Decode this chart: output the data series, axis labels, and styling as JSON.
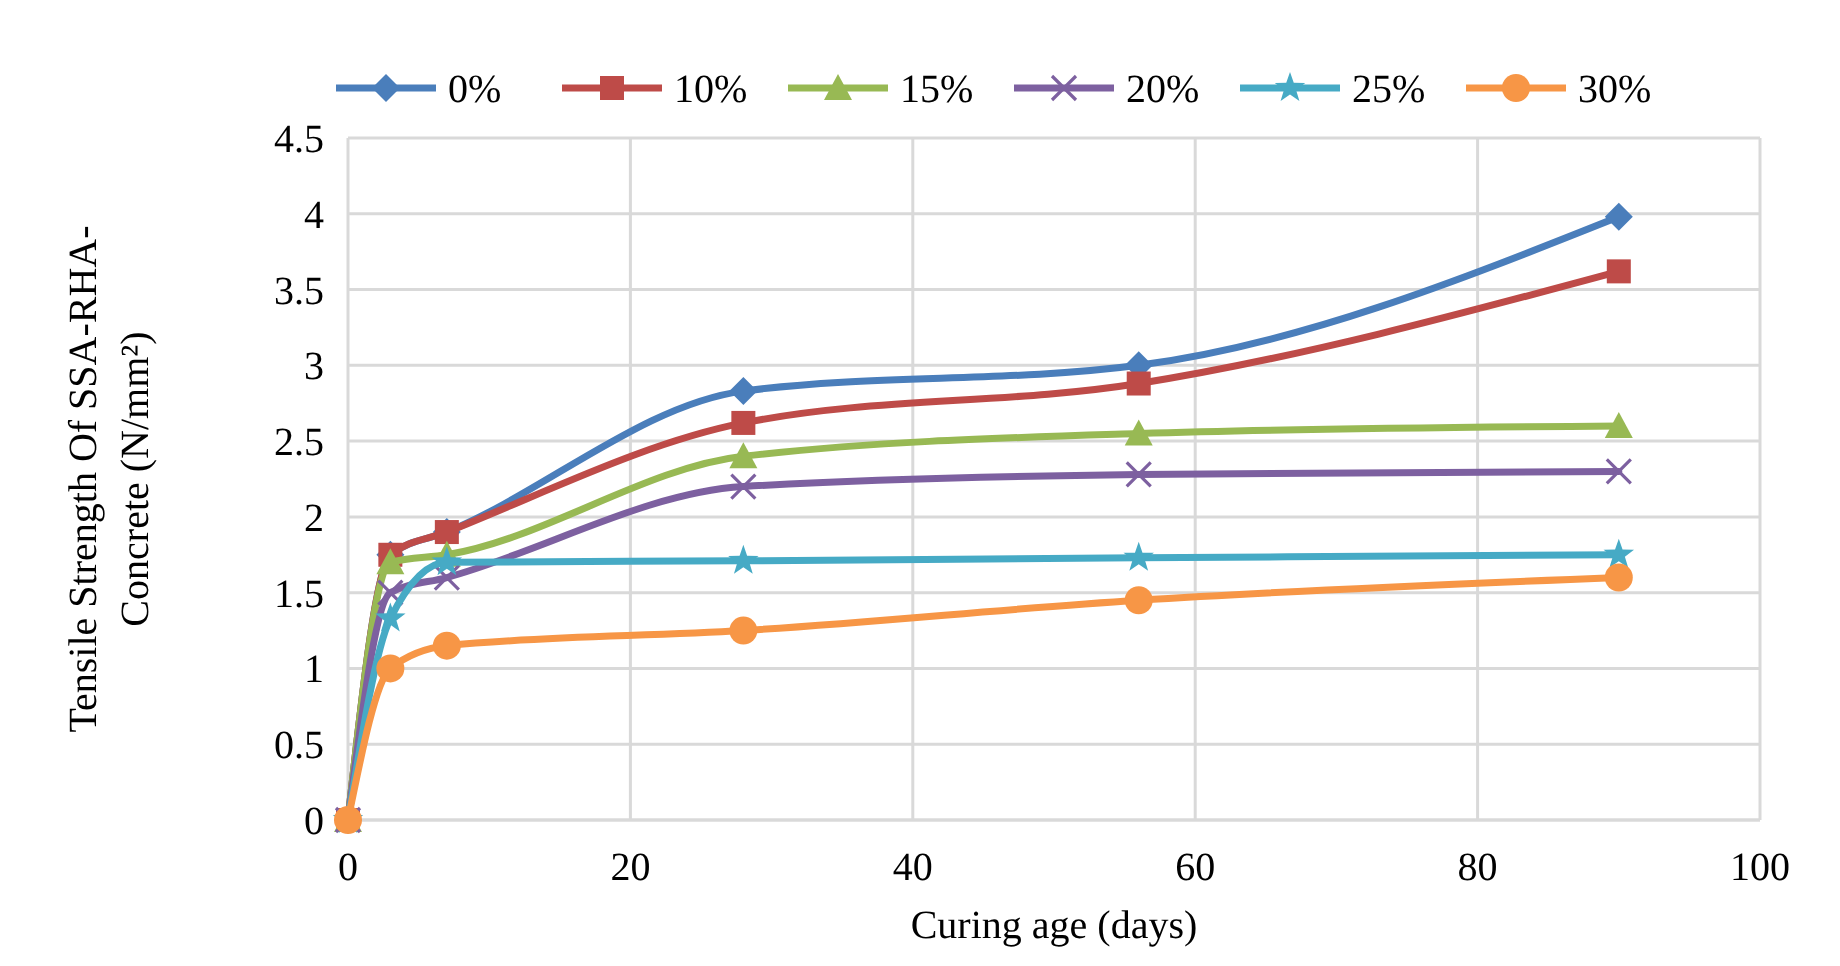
{
  "chart_data": {
    "type": "line",
    "xlabel": "Curing age (days)",
    "ylabel": "Tensile Strength Of SSA-RHA-Concrete  (N/mm²)",
    "x": [
      0,
      3,
      7,
      28,
      56,
      90
    ],
    "xlim": [
      0,
      100
    ],
    "xticks": [
      0,
      20,
      40,
      60,
      80,
      100
    ],
    "ylim": [
      0,
      4.5
    ],
    "yticks": [
      0,
      0.5,
      1,
      1.5,
      2,
      2.5,
      3,
      3.5,
      4,
      4.5
    ],
    "grid": true,
    "legend": "top",
    "series": [
      {
        "name": "0%",
        "color": "#4a7ebb",
        "marker": "diamond",
        "values": [
          0,
          1.75,
          1.9,
          2.83,
          3.0,
          3.98
        ]
      },
      {
        "name": "10%",
        "color": "#be4b48",
        "marker": "square",
        "values": [
          0,
          1.75,
          1.9,
          2.62,
          2.88,
          3.62
        ]
      },
      {
        "name": "15%",
        "color": "#98b954",
        "marker": "triangle",
        "values": [
          0,
          1.7,
          1.75,
          2.4,
          2.55,
          2.6
        ]
      },
      {
        "name": "20%",
        "color": "#7d60a0",
        "marker": "cross",
        "values": [
          0,
          1.5,
          1.6,
          2.2,
          2.28,
          2.3
        ]
      },
      {
        "name": "25%",
        "color": "#46aac5",
        "marker": "star",
        "values": [
          0,
          1.33,
          1.7,
          1.71,
          1.73,
          1.75
        ]
      },
      {
        "name": "30%",
        "color": "#f79646",
        "marker": "circle",
        "values": [
          0,
          1.0,
          1.15,
          1.25,
          1.45,
          1.6
        ]
      }
    ]
  }
}
